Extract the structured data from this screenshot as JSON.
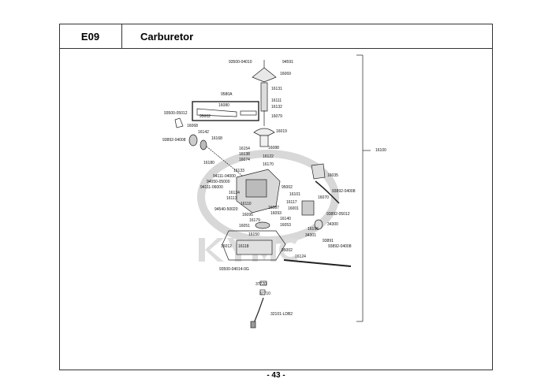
{
  "header": {
    "section_code": "E09",
    "title": "Carburetor"
  },
  "footer": {
    "page_number": "- 43 -"
  },
  "watermark": "KYMCO",
  "parts": [
    "93500-04010",
    "94591",
    "16069",
    "16131",
    "9580A",
    "16111",
    "16080",
    "16132",
    "95002",
    "93500-05012",
    "16079",
    "16068",
    "16142",
    "16168",
    "93892-04008",
    "16019",
    "16088",
    "16180",
    "16154",
    "16138",
    "16122",
    "16074",
    "16170",
    "16133",
    "94111-04000",
    "94050-05000",
    "94111-06000",
    "16035",
    "16124",
    "95002",
    "93892-04008",
    "16113",
    "16101",
    "16110",
    "16070",
    "94540-50020",
    "16117",
    "16001",
    "16095",
    "16087",
    "16093",
    "93892-05012",
    "16179",
    "16140",
    "16051",
    "16053",
    "34300",
    "16196",
    "34301",
    "16150",
    "93891",
    "16012",
    "16118",
    "93892-04008",
    "95002",
    "16124",
    "93500-04014-0G",
    "37720",
    "37710",
    "32101-LDB2",
    "16100"
  ]
}
